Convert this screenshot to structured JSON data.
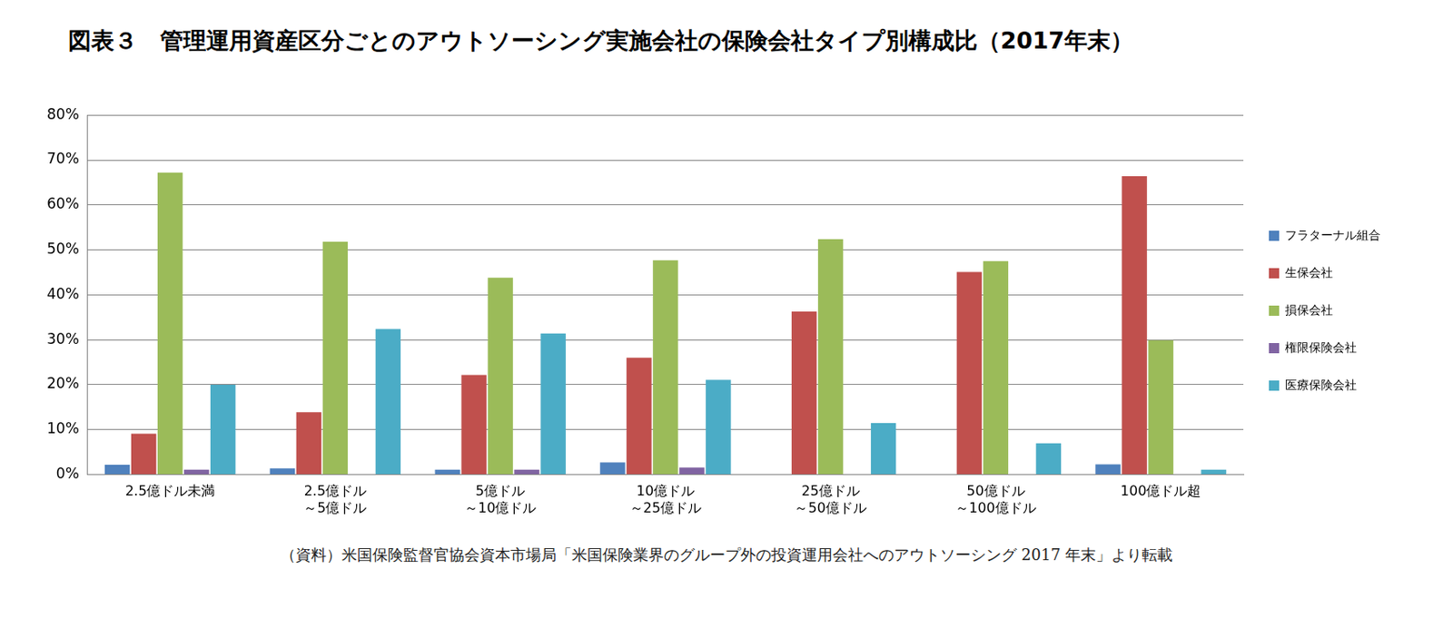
{
  "chart_data": {
    "type": "bar",
    "title": "図表３　管理運用資産区分ごとのアウトソーシング実施会社の保険会社タイプ別構成比（2017年末）",
    "source": "（資料）米国保険監督官協会資本市場局「米国保険業界のグループ外の投資運用会社へのアウトソーシング 2017 年末」より転載",
    "categories": [
      "2.5億ドル未満",
      [
        "2.5億ドル",
        "～5億ドル"
      ],
      [
        "5億ドル",
        "～10億ドル"
      ],
      [
        "10億ドル",
        "～25億ドル"
      ],
      [
        "25億ドル",
        "～50億ドル"
      ],
      [
        "50億ドル",
        "～100億ドル"
      ],
      "100億ドル超"
    ],
    "series": [
      {
        "name": "フラターナル組合",
        "color": "#4f81bd",
        "values": [
          2.2,
          1.4,
          1.1,
          2.7,
          0,
          0,
          2.3
        ]
      },
      {
        "name": "生保会社",
        "color": "#c0504d",
        "values": [
          9.1,
          13.9,
          22.2,
          26.0,
          36.3,
          45.1,
          66.4
        ]
      },
      {
        "name": "損保会社",
        "color": "#9bbb59",
        "values": [
          67.2,
          51.8,
          43.8,
          47.7,
          52.4,
          47.5,
          29.9
        ]
      },
      {
        "name": "権限保険会社",
        "color": "#8064a2",
        "values": [
          1.1,
          0,
          1.1,
          1.6,
          0,
          0,
          0
        ]
      },
      {
        "name": "医療保険会社",
        "color": "#4bacc6",
        "values": [
          20.0,
          32.4,
          31.4,
          21.1,
          11.5,
          7.0,
          1.1
        ]
      }
    ],
    "ylim": [
      0,
      80
    ],
    "yticks": [
      {
        "value": 0,
        "label": "0%"
      },
      {
        "value": 10,
        "label": "10%"
      },
      {
        "value": 20,
        "label": "20%"
      },
      {
        "value": 30,
        "label": "30%"
      },
      {
        "value": 40,
        "label": "40%"
      },
      {
        "value": 50,
        "label": "50%"
      },
      {
        "value": 60,
        "label": "60%"
      },
      {
        "value": 70,
        "label": "70%"
      },
      {
        "value": 80,
        "label": "80%"
      }
    ],
    "grid": true,
    "legend": "right"
  }
}
